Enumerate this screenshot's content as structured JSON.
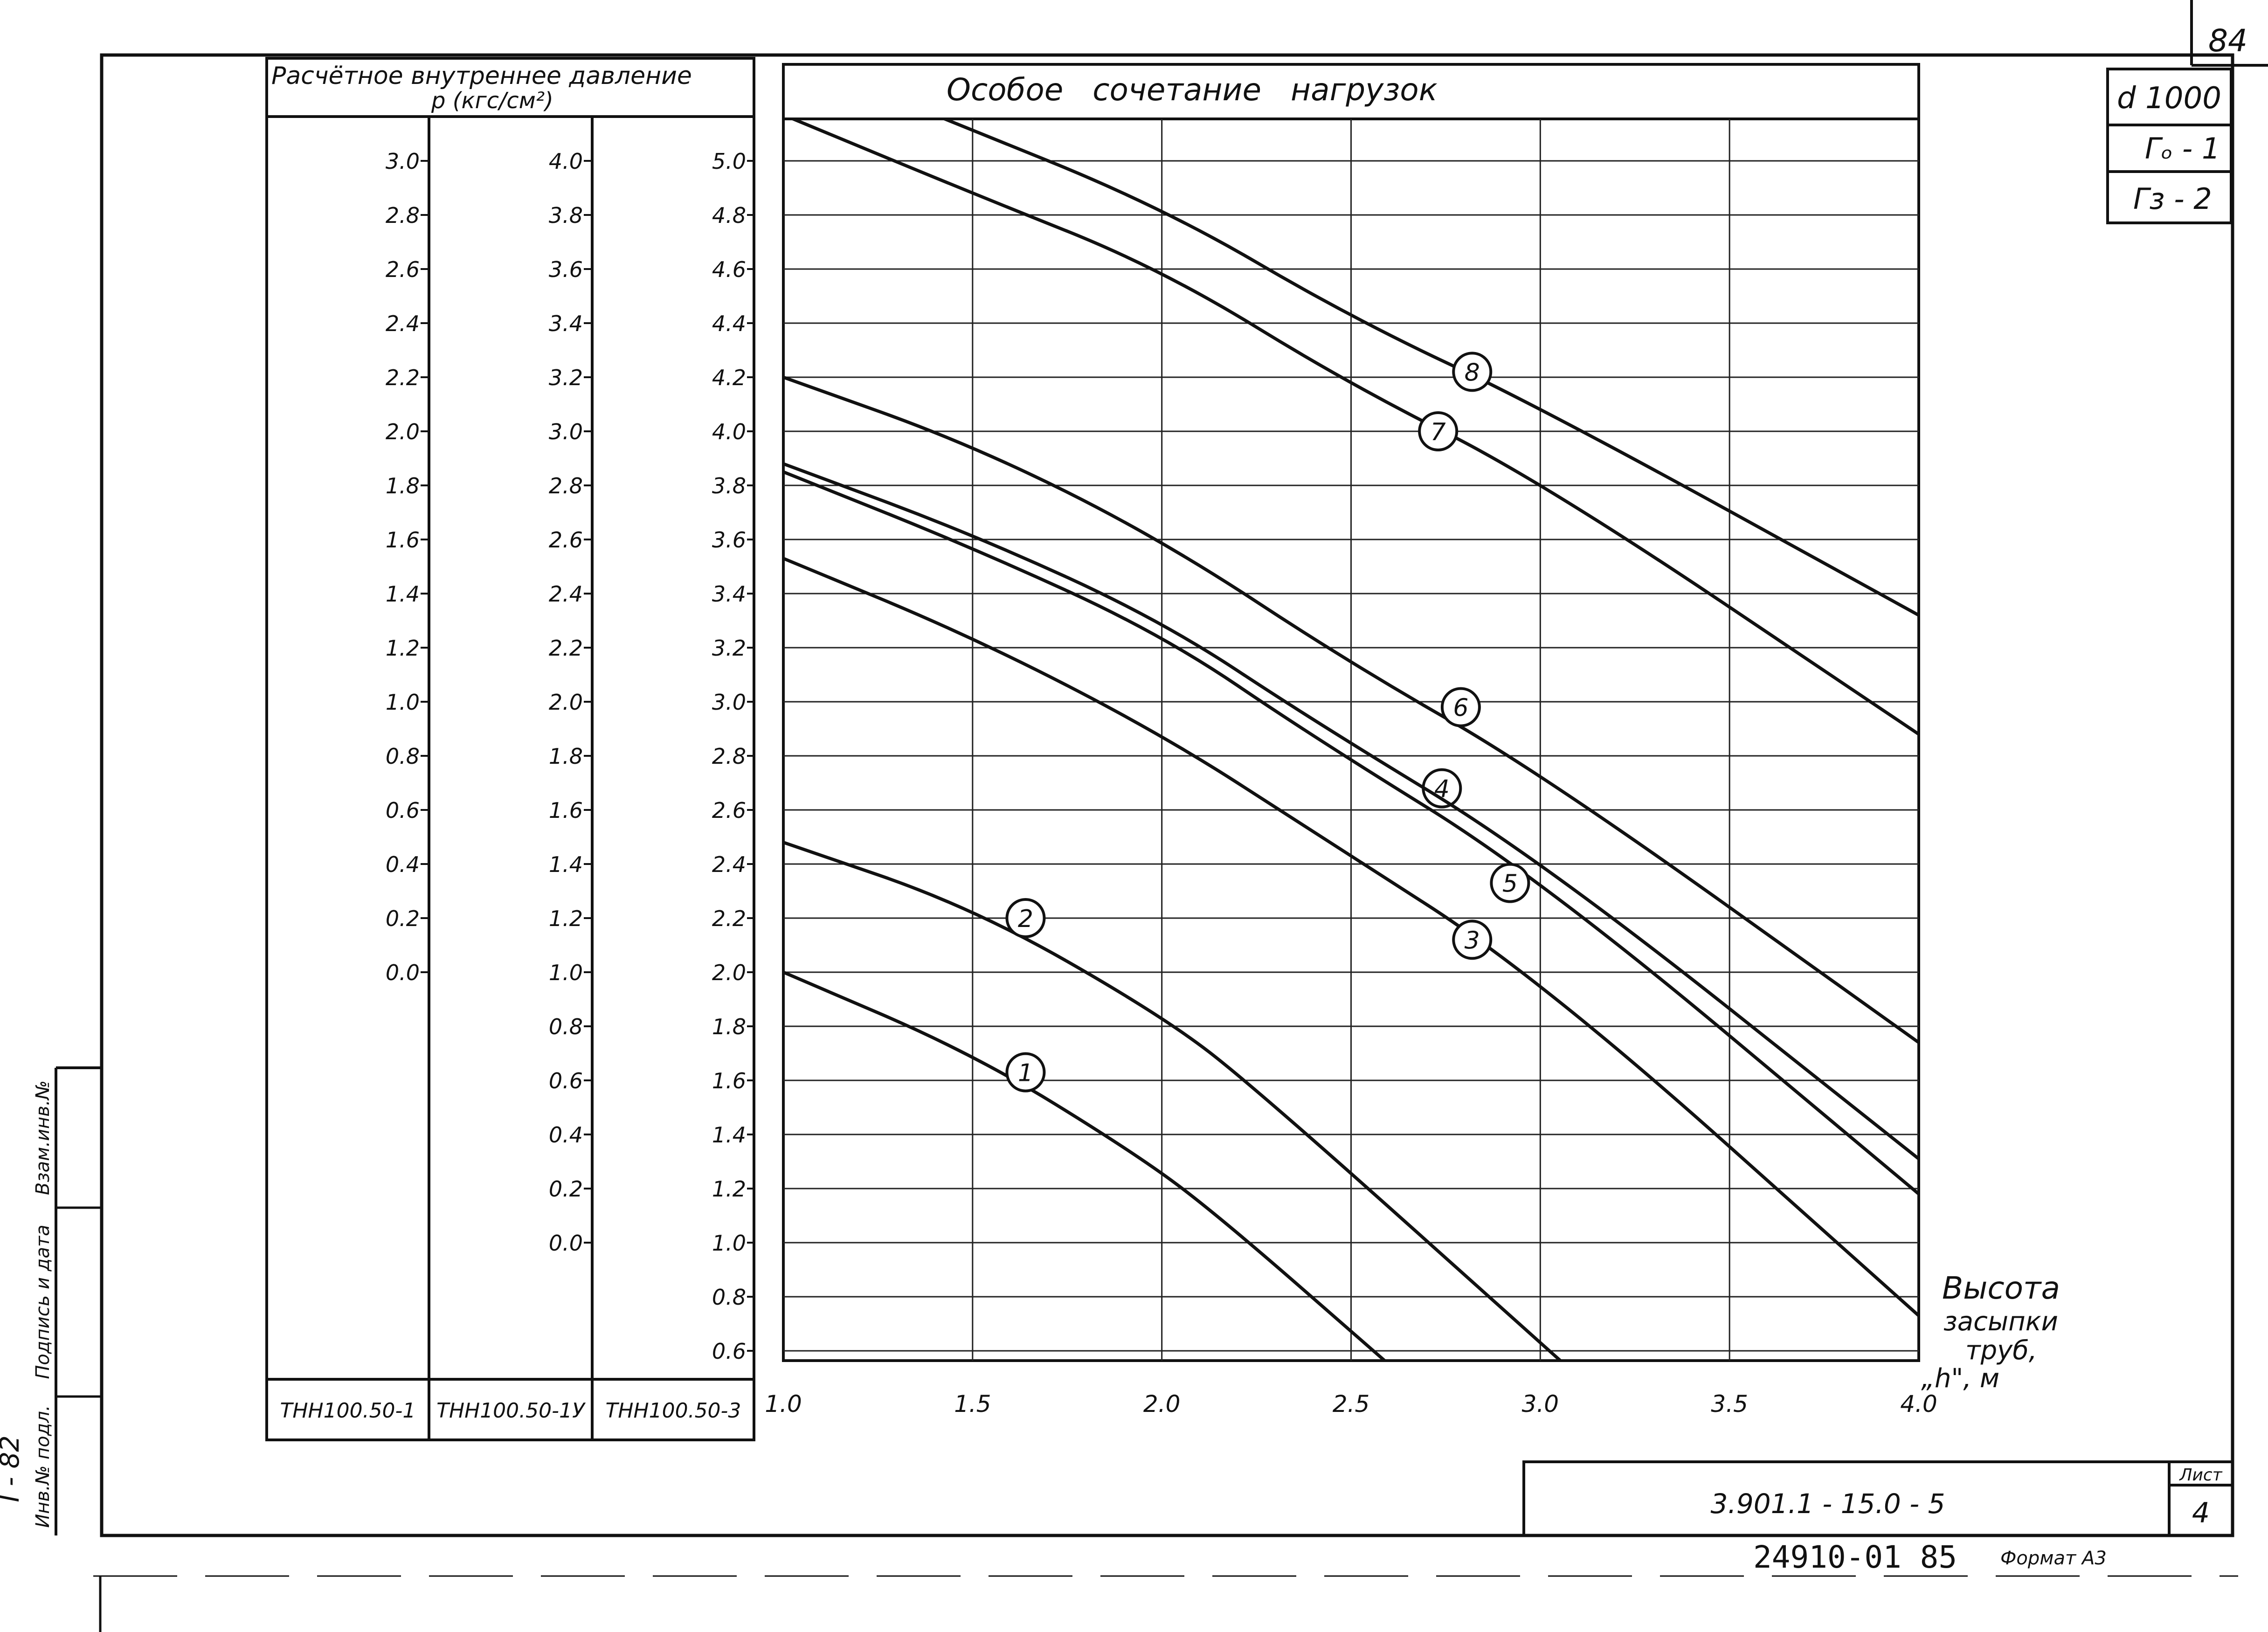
{
  "sheet": {
    "corner_number": "84",
    "title_block": {
      "pipe": "d 1000",
      "g0": "Гₒ - 1",
      "g3": "Гз - 2",
      "sheet_label": "Лист",
      "sheet_number": "4",
      "doc_code": "3.901.1 - 15.0 - 5",
      "inventory": "24910-01  85",
      "format": "Формат А3"
    },
    "left_strip": {
      "stamp": "I - 82",
      "cell_1": "Инв.№ подл.",
      "cell_2": "Подпись и дата",
      "cell_3": "Взам.инв.№"
    }
  },
  "pressure_table": {
    "header_line1": "Расчётное внутреннее давление",
    "header_line2": "p (кгс/см²)",
    "columns": [
      {
        "name": "ТНН100.50-1",
        "ticks": [
          "3.0",
          "2.8",
          "2.6",
          "2.4",
          "2.2",
          "2.0",
          "1.8",
          "1.6",
          "1.4",
          "1.2",
          "1.0",
          "0.8",
          "0.6",
          "0.4",
          "0.2",
          "0.0"
        ]
      },
      {
        "name": "ТНН100.50-1У",
        "ticks": [
          "4.0",
          "3.8",
          "3.6",
          "3.4",
          "3.2",
          "3.0",
          "2.8",
          "2.6",
          "2.4",
          "2.2",
          "2.0",
          "1.8",
          "1.6",
          "1.4",
          "1.2",
          "1.0",
          "0.8",
          "0.6",
          "0.4",
          "0.2",
          "0.0"
        ]
      },
      {
        "name": "ТНН100.50-3",
        "ticks": [
          "5.0",
          "4.8",
          "4.6",
          "4.4",
          "4.2",
          "4.0",
          "3.8",
          "3.6",
          "3.4",
          "3.2",
          "3.0",
          "2.8",
          "2.6",
          "2.4",
          "2.2",
          "2.0",
          "1.8",
          "1.6",
          "1.4",
          "1.2",
          "1.0",
          "0.8",
          "0.6"
        ]
      }
    ]
  },
  "chart_data": {
    "type": "line",
    "title": "Особое   сочетание   нагрузок",
    "xlabel_lines": [
      "Высота",
      "засыпки",
      "труб,",
      "„h\", м"
    ],
    "xlim": [
      1.0,
      4.0
    ],
    "ylim": [
      0.6,
      5.2
    ],
    "x_ticks": [
      "1.0",
      "1.5",
      "2.0",
      "2.5",
      "3.0",
      "3.5",
      "4.0"
    ],
    "x_tick_values": [
      1.0,
      1.5,
      2.0,
      2.5,
      3.0,
      3.5,
      4.0
    ],
    "y_grid_values": [
      5.0,
      4.8,
      4.6,
      4.4,
      4.2,
      4.0,
      3.8,
      3.6,
      3.4,
      3.2,
      3.0,
      2.8,
      2.6,
      2.4,
      2.2,
      2.0,
      1.8,
      1.6,
      1.4,
      1.2,
      1.0,
      0.8,
      0.6
    ],
    "grid": true,
    "y_axis_note": "y values read on the ТНН100.50-3 scale",
    "series": [
      {
        "name": "1",
        "points": [
          [
            1.0,
            2.0
          ],
          [
            1.5,
            1.7
          ],
          [
            1.93,
            1.33
          ],
          [
            2.15,
            1.1
          ],
          [
            2.6,
            0.55
          ]
        ],
        "label_at": [
          1.64,
          1.63
        ]
      },
      {
        "name": "2",
        "points": [
          [
            1.0,
            2.48
          ],
          [
            1.5,
            2.24
          ],
          [
            2.0,
            1.84
          ],
          [
            2.25,
            1.57
          ],
          [
            3.08,
            0.53
          ]
        ],
        "label_at": [
          1.64,
          2.2
        ]
      },
      {
        "name": "3",
        "points": [
          [
            1.0,
            3.53
          ],
          [
            1.5,
            3.24
          ],
          [
            2.0,
            2.88
          ],
          [
            2.4,
            2.52
          ],
          [
            3.0,
            1.98
          ],
          [
            4.0,
            0.73
          ]
        ],
        "label_at": [
          2.82,
          2.12
        ]
      },
      {
        "name": "4",
        "points": [
          [
            1.0,
            3.85
          ],
          [
            1.5,
            3.57
          ],
          [
            2.0,
            3.25
          ],
          [
            2.4,
            2.87
          ],
          [
            3.0,
            2.35
          ],
          [
            4.0,
            1.18
          ]
        ],
        "label_at": [
          2.74,
          2.68
        ]
      },
      {
        "name": "5",
        "points": [
          [
            1.0,
            3.88
          ],
          [
            1.5,
            3.62
          ],
          [
            2.0,
            3.3
          ],
          [
            2.4,
            2.93
          ],
          [
            3.0,
            2.42
          ],
          [
            4.0,
            1.31
          ]
        ],
        "label_at": [
          2.92,
          2.33
        ]
      },
      {
        "name": "6",
        "points": [
          [
            1.0,
            4.2
          ],
          [
            1.5,
            3.95
          ],
          [
            2.0,
            3.6
          ],
          [
            2.5,
            3.14
          ],
          [
            3.0,
            2.74
          ],
          [
            4.0,
            1.74
          ]
        ],
        "label_at": [
          2.79,
          2.98
        ]
      },
      {
        "name": "7",
        "points": [
          [
            1.0,
            5.17
          ],
          [
            1.5,
            4.88
          ],
          [
            2.0,
            4.6
          ],
          [
            2.5,
            4.17
          ],
          [
            3.0,
            3.82
          ],
          [
            4.0,
            2.88
          ]
        ],
        "label_at": [
          2.73,
          4.0
        ]
      },
      {
        "name": "8",
        "points": [
          [
            1.4,
            5.17
          ],
          [
            2.0,
            4.83
          ],
          [
            2.5,
            4.42
          ],
          [
            3.0,
            4.09
          ],
          [
            4.0,
            3.32
          ]
        ],
        "label_at": [
          2.82,
          4.22
        ]
      }
    ]
  }
}
